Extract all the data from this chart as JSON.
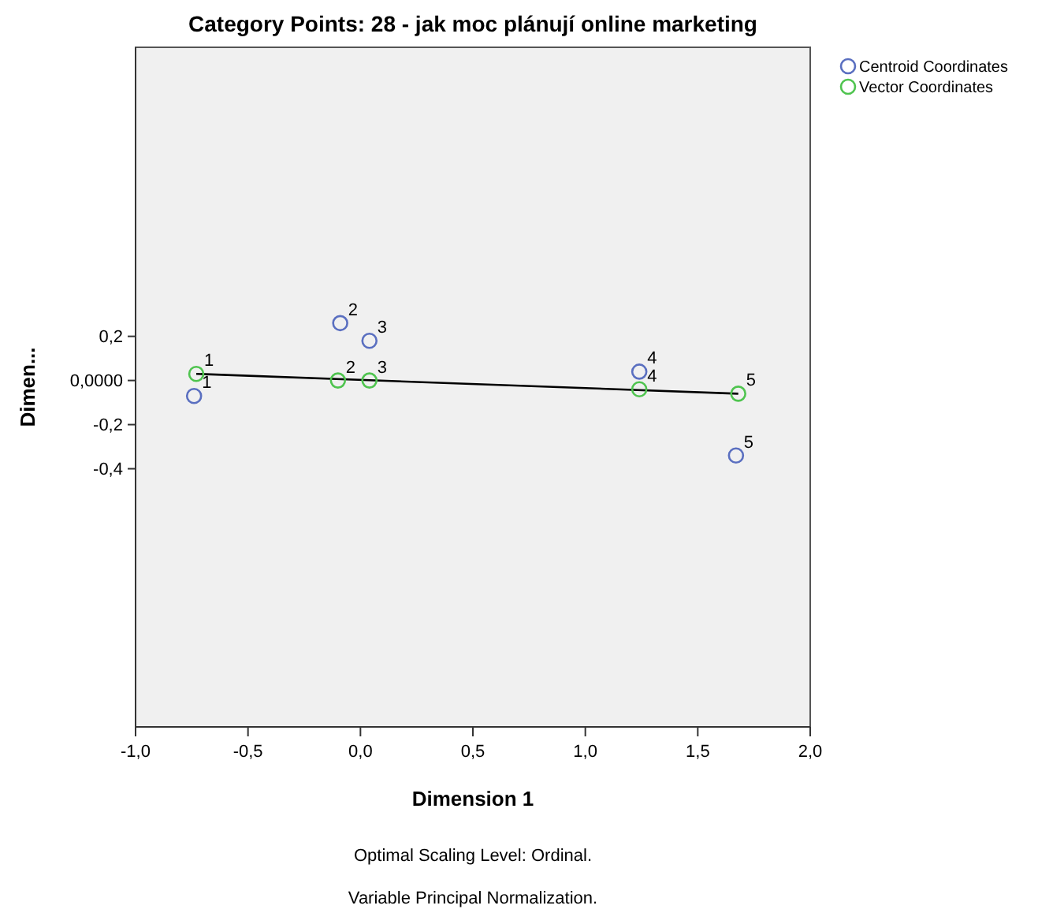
{
  "chart_data": {
    "type": "scatter",
    "title": "Category Points: 28 - jak moc plánují online marketing",
    "xlabel": "Dimension 1",
    "ylabel": "Dimen...",
    "xlim": [
      -1.0,
      2.0
    ],
    "xticks": [
      {
        "value": -1,
        "label": "-1,0"
      },
      {
        "value": -0.5,
        "label": "-0,5"
      },
      {
        "value": 0,
        "label": "0,0"
      },
      {
        "value": 0.5,
        "label": "0,5"
      },
      {
        "value": 1,
        "label": "1,0"
      },
      {
        "value": 1.5,
        "label": "1,5"
      },
      {
        "value": 2,
        "label": "2,0"
      }
    ],
    "ylim": [
      -1.57,
      1.51
    ],
    "yticks": [
      {
        "value": 0.2,
        "label": "0,2"
      },
      {
        "value": 0,
        "label": "0,0000"
      },
      {
        "value": -0.2,
        "label": "-0,2"
      },
      {
        "value": -0.4,
        "label": "-0,4"
      }
    ],
    "marker": "circle",
    "legend": "top right",
    "grid": false,
    "series": [
      {
        "type": "line",
        "marker": "none",
        "color": "#000000",
        "x": [
          -0.73,
          1.68
        ],
        "values": [
          0.03,
          -0.06
        ]
      },
      {
        "name": "Centroid Coordinates",
        "color": "#5a6fc0",
        "x": [
          -0.74,
          -0.09,
          0.04,
          1.24,
          1.67
        ],
        "values": [
          -0.07,
          0.26,
          0.18,
          0.04,
          -0.34
        ]
      },
      {
        "name": "Vector Coordinates",
        "color": "#4fc44f",
        "x": [
          -0.73,
          -0.1,
          0.04,
          1.24,
          1.68
        ],
        "values": [
          0.03,
          0.0,
          0.0,
          -0.04,
          -0.06
        ]
      }
    ],
    "annotations": [
      {
        "text": "1",
        "x": -0.74,
        "y": -0.07
      },
      {
        "text": "2",
        "x": -0.09,
        "y": 0.26
      },
      {
        "text": "3",
        "x": 0.04,
        "y": 0.18
      },
      {
        "text": "4",
        "x": 1.24,
        "y": 0.04
      },
      {
        "text": "5",
        "x": 1.67,
        "y": -0.34
      },
      {
        "text": "1",
        "x": -0.73,
        "y": 0.03
      },
      {
        "text": "2",
        "x": -0.1,
        "y": 0.0
      },
      {
        "text": "3",
        "x": 0.04,
        "y": 0.0
      },
      {
        "text": "4",
        "x": 1.24,
        "y": -0.04
      },
      {
        "text": "5",
        "x": 1.68,
        "y": -0.06
      },
      "Optimal Scaling Level: Ordinal.",
      "Variable Principal Normalization."
    ]
  }
}
